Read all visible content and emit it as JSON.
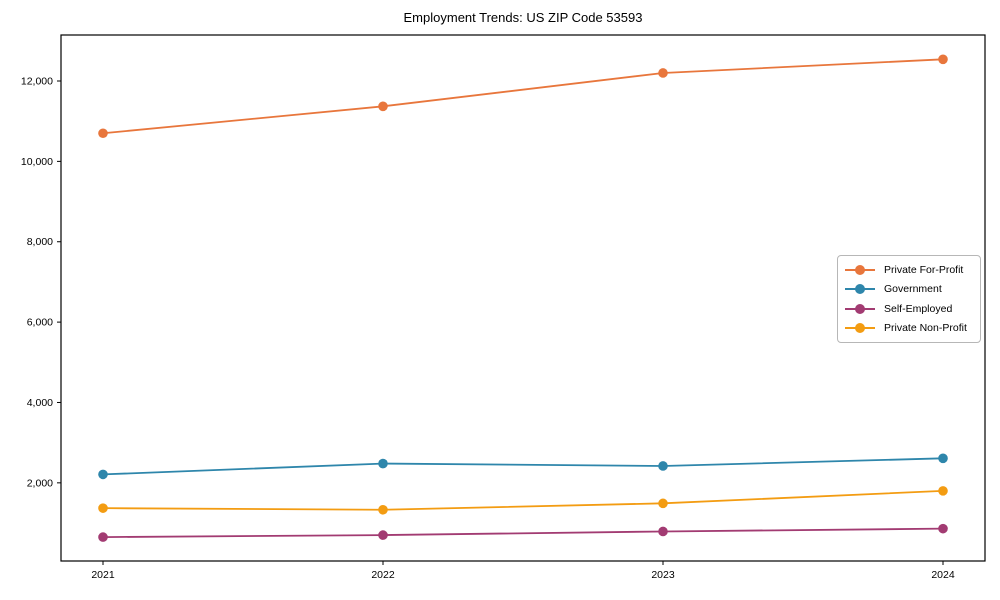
{
  "title": "Employment Trends: US ZIP Code 53593",
  "chart_data": {
    "type": "line",
    "title": "Employment Trends: US ZIP Code 53593",
    "x": [
      2021,
      2022,
      2023,
      2024
    ],
    "xtick_labels": [
      "2021",
      "2022",
      "2023",
      "2024"
    ],
    "series": [
      {
        "name": "Private For-Profit",
        "color": "#E8763C",
        "values": [
          10700,
          11370,
          12200,
          12540
        ]
      },
      {
        "name": "Government",
        "color": "#2E86AB",
        "values": [
          2210,
          2480,
          2420,
          2610
        ]
      },
      {
        "name": "Self-Employed",
        "color": "#A23B72",
        "values": [
          650,
          700,
          790,
          860
        ]
      },
      {
        "name": "Private Non-Profit",
        "color": "#F39C12",
        "values": [
          1370,
          1330,
          1490,
          1800
        ]
      }
    ],
    "xlabel": "",
    "ylabel": "",
    "xlim": [
      2020.85,
      2024.15
    ],
    "ylim": [
      55,
      13145
    ],
    "yticks": [
      2000,
      4000,
      6000,
      8000,
      10000,
      12000
    ],
    "ytick_labels": [
      "2,000",
      "4,000",
      "6,000",
      "8,000",
      "10,000",
      "12,000"
    ],
    "grid": false,
    "legend_position": "center-right",
    "marker": "circle",
    "frame_color": "#000000",
    "background_color": "#ffffff"
  }
}
